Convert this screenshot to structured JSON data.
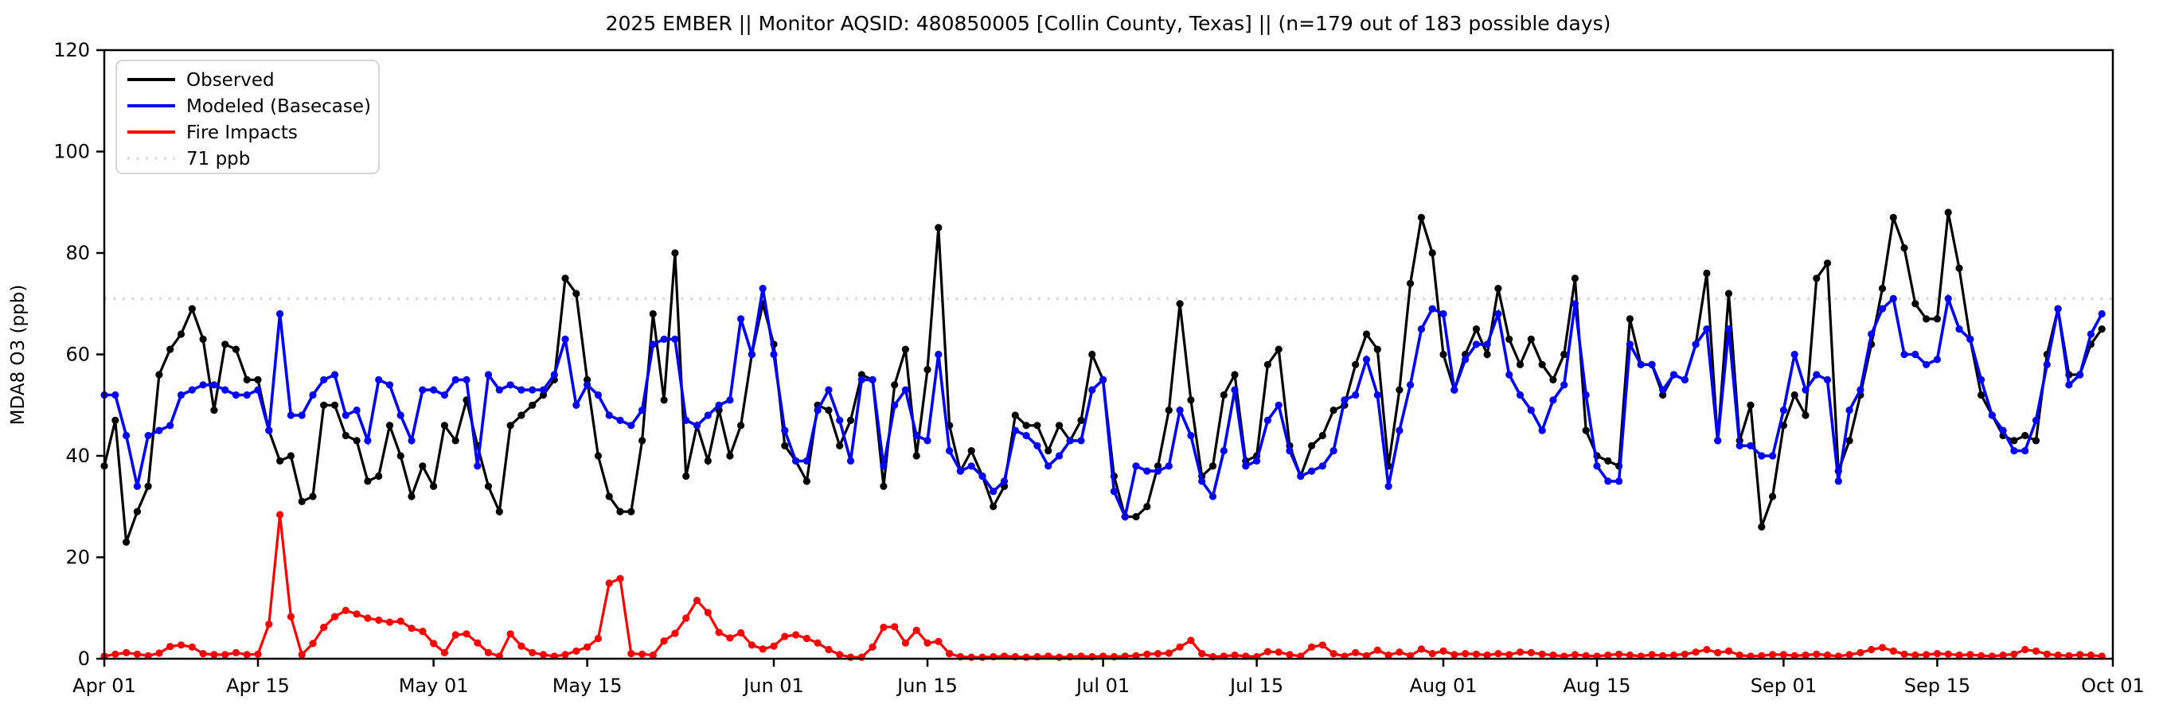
{
  "title": "2025 EMBER || Monitor AQSID: 480850005 [Collin County, Texas] || (n=179 out of 183 possible days)",
  "y_axis": {
    "label": "MDA8 O3 (ppb)",
    "ticks": [
      0,
      20,
      40,
      60,
      80,
      100,
      120
    ],
    "limits": [
      0,
      120
    ]
  },
  "x_axis": {
    "tick_labels": [
      "Apr 01",
      "Apr 15",
      "May 01",
      "May 15",
      "Jun 01",
      "Jun 15",
      "Jul 01",
      "Jul 15",
      "Aug 01",
      "Aug 15",
      "Sep 01",
      "Sep 15",
      "Oct 01"
    ],
    "tick_days": [
      0,
      14,
      30,
      44,
      61,
      75,
      91,
      105,
      122,
      136,
      153,
      167,
      183
    ]
  },
  "threshold": {
    "value": 71,
    "label": "71 ppb",
    "color": "#d9d9d9"
  },
  "legend": [
    {
      "label": "Observed",
      "color": "#000000",
      "style": "solid"
    },
    {
      "label": "Modeled (Basecase)",
      "color": "#0000ff",
      "style": "solid"
    },
    {
      "label": "Fire Impacts",
      "color": "#ff0000",
      "style": "solid"
    },
    {
      "label": "71 ppb",
      "color": "#d9d9d9",
      "style": "dotted"
    }
  ],
  "chart_data": {
    "type": "line",
    "x_start_day": "Apr 01",
    "x_end_day": "Sep 30",
    "n_points": 183,
    "xlabel": "",
    "ylabel": "MDA8 O3 (ppb)",
    "ylim": [
      0,
      120
    ],
    "grid": false,
    "legend_position": "upper left",
    "series": [
      {
        "name": "Observed",
        "color": "#000000",
        "values": [
          38,
          47,
          23,
          29,
          34,
          56,
          61,
          64,
          69,
          63,
          49,
          62,
          61,
          55,
          55,
          45,
          39,
          40,
          31,
          32,
          50,
          50,
          44,
          43,
          35,
          36,
          46,
          40,
          32,
          38,
          34,
          46,
          43,
          51,
          42,
          34,
          29,
          46,
          48,
          50,
          52,
          55,
          75,
          72,
          55,
          40,
          32,
          29,
          29,
          43,
          68,
          51,
          80,
          36,
          46,
          39,
          49,
          40,
          46,
          60,
          70,
          62,
          42,
          39,
          35,
          50,
          49,
          42,
          47,
          56,
          55,
          34,
          54,
          61,
          40,
          57,
          85,
          46,
          37,
          41,
          36,
          30,
          34,
          48,
          46,
          46,
          41,
          46,
          43,
          47,
          60,
          55,
          36,
          28,
          28,
          30,
          38,
          49,
          70,
          51,
          36,
          38,
          52,
          56,
          39,
          40,
          58,
          61,
          42,
          36,
          42,
          44,
          49,
          50,
          58,
          64,
          61,
          38,
          53,
          74,
          87,
          80,
          60,
          53,
          60,
          65,
          60,
          73,
          63,
          58,
          63,
          58,
          55,
          60,
          75,
          45,
          40,
          39,
          38,
          67,
          58,
          58,
          52,
          56,
          55,
          62,
          76,
          43,
          72,
          43,
          50,
          26,
          32,
          46,
          52,
          48,
          75,
          78,
          37,
          43,
          52,
          62,
          73,
          87,
          81,
          70,
          67,
          67,
          88,
          77,
          63,
          52,
          48,
          44,
          43,
          44,
          43,
          60,
          69,
          56,
          56,
          62,
          65
        ]
      },
      {
        "name": "Modeled (Basecase)",
        "color": "#0000ff",
        "values": [
          52,
          52,
          44,
          34,
          44,
          45,
          46,
          52,
          53,
          54,
          54,
          53,
          52,
          52,
          53,
          45,
          68,
          48,
          48,
          52,
          55,
          56,
          48,
          49,
          43,
          55,
          54,
          48,
          43,
          53,
          53,
          52,
          55,
          55,
          38,
          56,
          53,
          54,
          53,
          53,
          53,
          56,
          63,
          50,
          54,
          52,
          48,
          47,
          46,
          49,
          62,
          63,
          63,
          47,
          46,
          48,
          50,
          51,
          67,
          60,
          73,
          60,
          45,
          39,
          39,
          49,
          53,
          47,
          39,
          55,
          55,
          38,
          50,
          53,
          44,
          43,
          60,
          41,
          37,
          38,
          36,
          33,
          35,
          45,
          44,
          42,
          38,
          40,
          43,
          43,
          53,
          55,
          33,
          28,
          38,
          37,
          37,
          38,
          49,
          44,
          35,
          32,
          41,
          53,
          38,
          39,
          47,
          50,
          41,
          36,
          37,
          38,
          41,
          51,
          52,
          59,
          52,
          34,
          45,
          54,
          65,
          69,
          68,
          53,
          59,
          62,
          62,
          68,
          56,
          52,
          49,
          45,
          51,
          54,
          70,
          52,
          38,
          35,
          35,
          62,
          58,
          58,
          53,
          56,
          55,
          62,
          65,
          43,
          65,
          42,
          42,
          40,
          40,
          49,
          60,
          53,
          56,
          55,
          35,
          49,
          53,
          64,
          69,
          71,
          60,
          60,
          58,
          59,
          71,
          65,
          63,
          55,
          48,
          45,
          41,
          41,
          47,
          58,
          69,
          54,
          56,
          64,
          68
        ]
      },
      {
        "name": "Fire Impacts",
        "color": "#ff0000",
        "values": [
          0.5,
          0.9,
          1.2,
          0.9,
          0.6,
          1.1,
          2.4,
          2.7,
          2.3,
          1.0,
          0.8,
          0.8,
          1.2,
          0.8,
          0.9,
          6.8,
          28.4,
          8.3,
          0.8,
          3.0,
          6.2,
          8.3,
          9.5,
          8.8,
          8.0,
          7.6,
          7.2,
          7.4,
          6.0,
          5.4,
          3.0,
          1.2,
          4.7,
          4.9,
          3.1,
          1.2,
          0.5,
          4.9,
          2.5,
          1.2,
          0.8,
          0.5,
          0.8,
          1.5,
          2.3,
          4.0,
          14.9,
          15.8,
          1.0,
          0.9,
          0.7,
          3.5,
          5.0,
          8.0,
          11.5,
          9.1,
          5.2,
          4.1,
          5.1,
          2.7,
          1.9,
          2.5,
          4.4,
          4.7,
          4.0,
          3.1,
          1.8,
          0.8,
          0.3,
          0.3,
          2.3,
          6.2,
          6.3,
          3.1,
          5.6,
          3.1,
          3.4,
          1.0,
          0.4,
          0.3,
          0.3,
          0.4,
          0.5,
          0.4,
          0.3,
          0.4,
          0.5,
          0.3,
          0.4,
          0.5,
          0.4,
          0.5,
          0.4,
          0.5,
          0.6,
          0.9,
          1.0,
          1.1,
          2.3,
          3.6,
          1.0,
          0.4,
          0.5,
          0.7,
          0.5,
          0.4,
          1.4,
          1.3,
          0.8,
          0.5,
          2.3,
          2.7,
          1.0,
          0.5,
          1.2,
          0.6,
          1.7,
          0.7,
          1.3,
          0.6,
          1.9,
          1.0,
          1.5,
          0.8,
          1.0,
          0.9,
          0.7,
          1.0,
          0.8,
          1.3,
          1.2,
          0.9,
          0.7,
          0.5,
          0.8,
          0.6,
          0.5,
          0.7,
          0.9,
          0.7,
          0.5,
          0.8,
          0.6,
          0.7,
          0.9,
          1.3,
          1.8,
          1.2,
          1.5,
          0.7,
          0.5,
          0.6,
          0.8,
          0.8,
          0.6,
          0.7,
          0.9,
          0.7,
          0.5,
          0.8,
          1.2,
          1.8,
          2.2,
          1.5,
          0.9,
          0.7,
          0.8,
          1.0,
          0.9,
          0.7,
          0.8,
          0.6,
          0.5,
          0.7,
          0.9,
          1.8,
          1.5,
          0.9,
          0.7,
          0.6,
          0.8,
          0.7,
          0.5
        ]
      }
    ]
  }
}
